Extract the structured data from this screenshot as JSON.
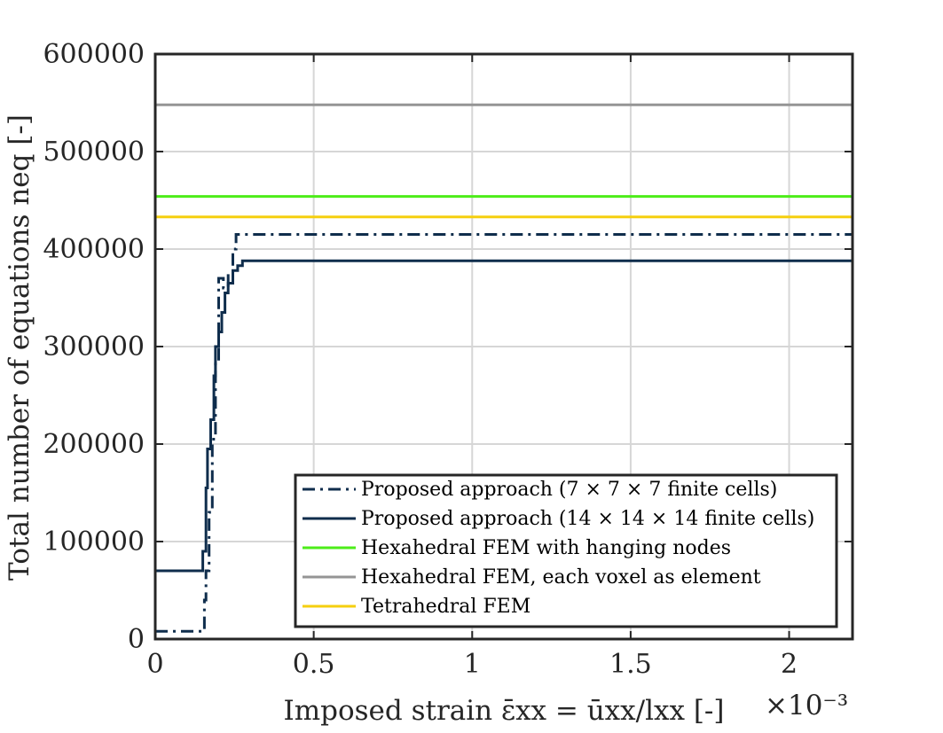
{
  "chart_data": {
    "type": "line",
    "title": "",
    "xlabel": "Imposed strain ε̄xx = ūxx/lxx [-]",
    "x_exponent": "×10⁻³",
    "ylabel": "Total number of equations neq [-]",
    "xlim": [
      0,
      2.2
    ],
    "ylim": [
      0,
      600000
    ],
    "xticks": [
      0,
      0.5,
      1,
      1.5,
      2
    ],
    "xtick_labels": [
      "0",
      "0.5",
      "1",
      "1.5",
      "2"
    ],
    "yticks": [
      0,
      100000,
      200000,
      300000,
      400000,
      500000,
      600000
    ],
    "ytick_labels": [
      "0",
      "100000",
      "200000",
      "300000",
      "400000",
      "500000",
      "600000"
    ],
    "grid": true,
    "legend_position": "bottom-right",
    "series": [
      {
        "name": "Proposed approach (7 × 7 × 7 finite cells)",
        "color": "#0f2d4c",
        "style": "dashdot",
        "x": [
          0,
          0.155,
          0.155,
          0.16,
          0.16,
          0.17,
          0.17,
          0.18,
          0.18,
          0.19,
          0.19,
          0.2,
          0.2,
          0.215,
          0.215,
          0.23,
          0.23,
          0.245,
          0.245,
          0.255,
          0.255,
          2.2
        ],
        "y": [
          8000,
          8000,
          40000,
          40000,
          70000,
          70000,
          130000,
          130000,
          205000,
          205000,
          285000,
          285000,
          370000,
          370000,
          360000,
          360000,
          375000,
          375000,
          400000,
          400000,
          415000,
          415000
        ]
      },
      {
        "name": "Proposed approach (14 × 14 × 14 finite cells)",
        "color": "#0f2d4c",
        "style": "solid",
        "x": [
          0,
          0.15,
          0.15,
          0.16,
          0.16,
          0.165,
          0.165,
          0.175,
          0.175,
          0.185,
          0.185,
          0.19,
          0.19,
          0.2,
          0.2,
          0.21,
          0.21,
          0.22,
          0.22,
          0.23,
          0.23,
          0.245,
          0.245,
          0.26,
          0.26,
          0.275,
          0.275,
          2.2
        ],
        "y": [
          70000,
          70000,
          90000,
          90000,
          155000,
          155000,
          195000,
          195000,
          225000,
          225000,
          270000,
          270000,
          300000,
          300000,
          315000,
          315000,
          335000,
          335000,
          355000,
          355000,
          365000,
          365000,
          378000,
          378000,
          383000,
          383000,
          388000,
          388000
        ]
      },
      {
        "name": "Hexahedral FEM with hanging nodes",
        "color": "#4ded19",
        "style": "solid",
        "x": [
          0,
          2.2
        ],
        "y": [
          454000,
          454000
        ]
      },
      {
        "name": "Hexahedral FEM, each voxel as element",
        "color": "#959595",
        "style": "solid",
        "x": [
          0,
          2.2
        ],
        "y": [
          548000,
          548000
        ]
      },
      {
        "name": "Tetrahedral FEM",
        "color": "#f5cf0f",
        "style": "solid",
        "x": [
          0,
          2.2
        ],
        "y": [
          433000,
          433000
        ]
      }
    ]
  }
}
